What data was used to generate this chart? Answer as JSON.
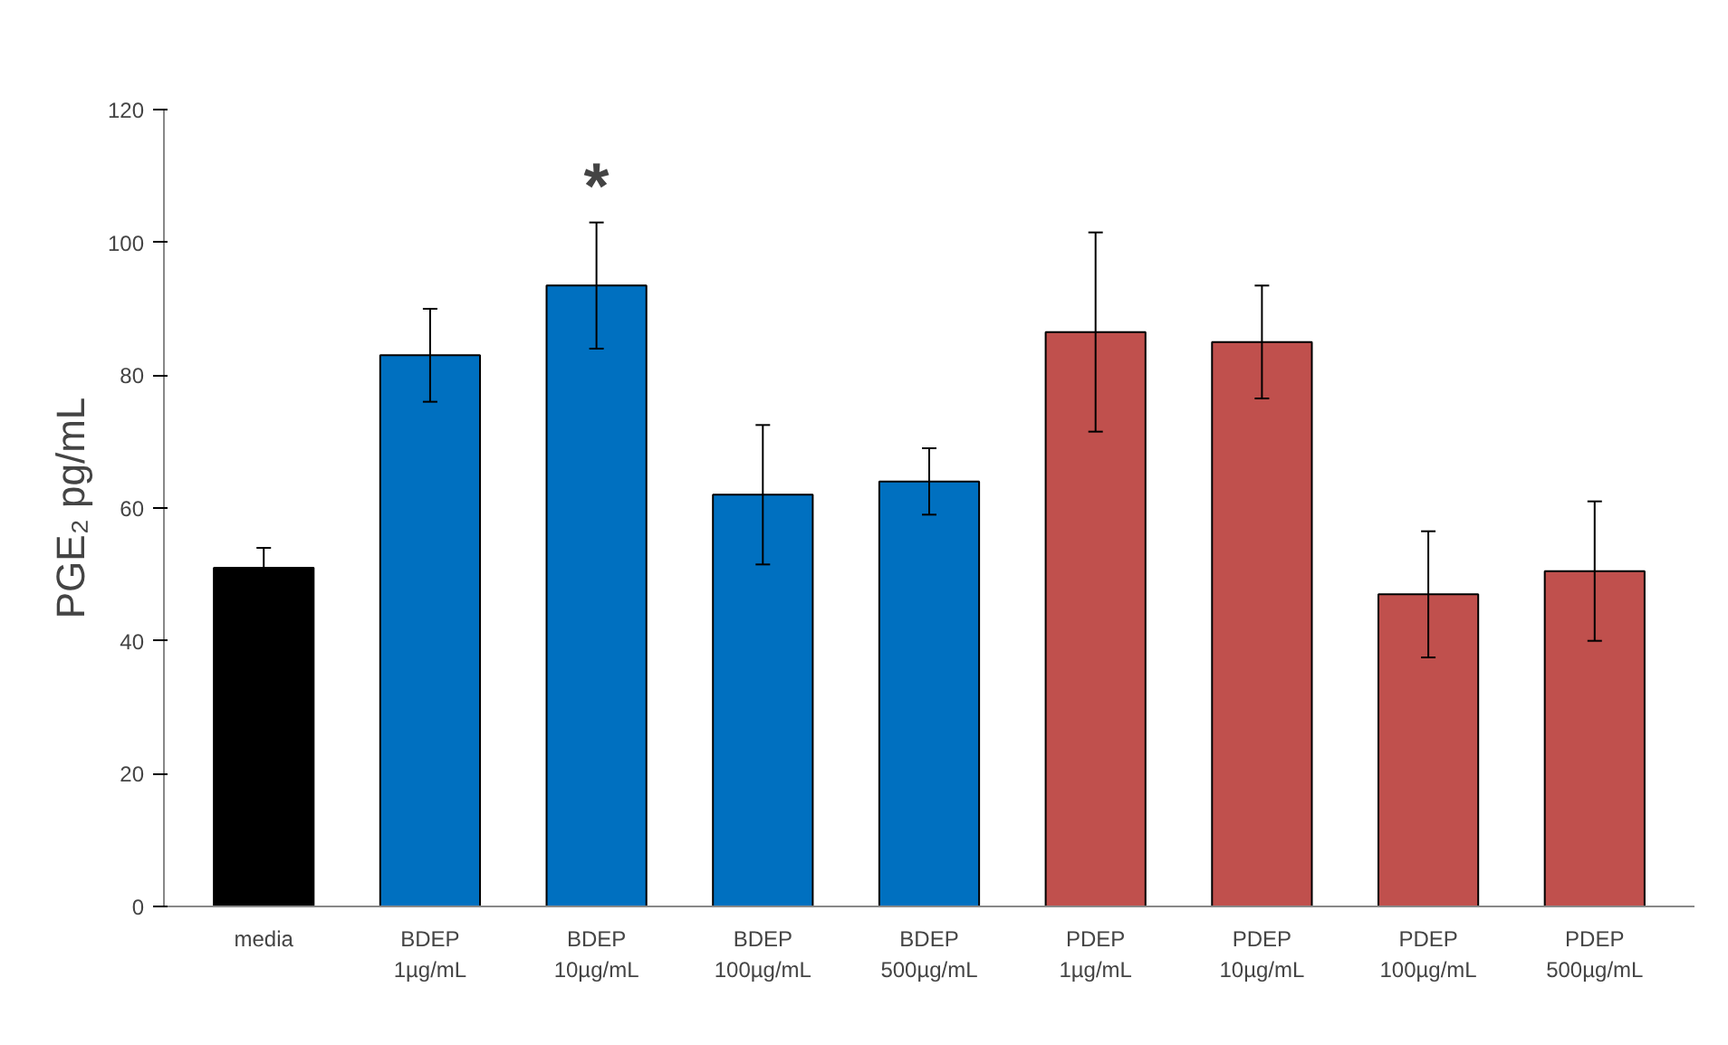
{
  "chart_data": {
    "type": "bar",
    "ylabel": "PGE₂ pg/mL",
    "categories": [
      "media",
      "BDEP\n1µg/mL",
      "BDEP\n10µg/mL",
      "BDEP\n100µg/mL",
      "BDEP\n500µg/mL",
      "PDEP\n1µg/mL",
      "PDEP\n10µg/mL",
      "PDEP\n100µg/mL",
      "PDEP\n500µg/mL"
    ],
    "values": [
      51,
      83,
      93.5,
      62,
      64,
      86.5,
      85,
      47,
      50.5
    ],
    "errors": [
      3,
      7,
      9.5,
      10.5,
      5,
      15,
      8.5,
      9.5,
      10.5
    ],
    "colors": [
      "#000000",
      "#0070c0",
      "#0070c0",
      "#0070c0",
      "#0070c0",
      "#c0504d",
      "#c0504d",
      "#c0504d",
      "#c0504d"
    ],
    "ylim": [
      0,
      120
    ],
    "yticks": [
      0,
      20,
      40,
      60,
      80,
      100,
      120
    ],
    "grid": false,
    "annotations": [
      {
        "text": "*",
        "x": "BDEP\n10µg/mL",
        "y": 103
      }
    ]
  }
}
